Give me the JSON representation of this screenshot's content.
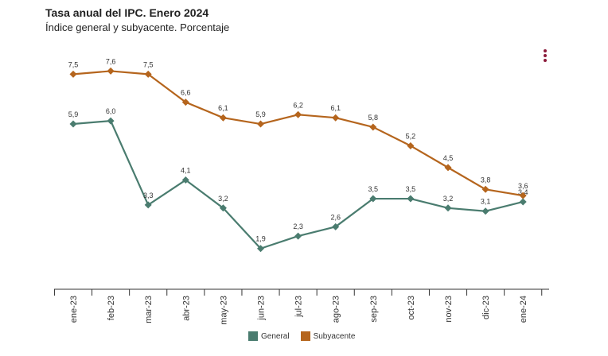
{
  "header": {
    "title": "Tasa anual del IPC. Enero 2024",
    "subtitle": "Índice general y subyacente. Porcentaje"
  },
  "chart_data": {
    "type": "line",
    "categories": [
      "ene-23",
      "feb-23",
      "mar-23",
      "abr-23",
      "may-23",
      "jun-23",
      "jul-23",
      "ago-23",
      "sep-23",
      "oct-23",
      "nov-23",
      "dic-23",
      "ene-24"
    ],
    "series": [
      {
        "name": "General",
        "color": "#4a7c6f",
        "values": [
          5.9,
          6.0,
          3.3,
          4.1,
          3.2,
          1.9,
          2.3,
          2.6,
          3.5,
          3.5,
          3.2,
          3.1,
          3.4
        ]
      },
      {
        "name": "Subyacente",
        "color": "#b5651d",
        "values": [
          7.5,
          7.6,
          7.5,
          6.6,
          6.1,
          5.9,
          6.2,
          6.1,
          5.8,
          5.2,
          4.5,
          3.8,
          3.6
        ]
      }
    ],
    "data_labels": {
      "General": [
        "5,9",
        "6,0",
        "3,3",
        "4,1",
        "3,2",
        "1,9",
        "2,3",
        "2,6",
        "3,5",
        "3,5",
        "3,2",
        "3,1",
        "3,4"
      ],
      "Subyacente": [
        "7,5",
        "7,6",
        "7,5",
        "6,6",
        "6,1",
        "5,9",
        "6,2",
        "6,1",
        "5,8",
        "5,2",
        "4,5",
        "3,8",
        "3,6"
      ]
    },
    "ylim": [
      1.0,
      8.3
    ],
    "grid": false,
    "legend": "bottom"
  },
  "legend": {
    "general": "General",
    "subyacente": "Subyacente"
  }
}
